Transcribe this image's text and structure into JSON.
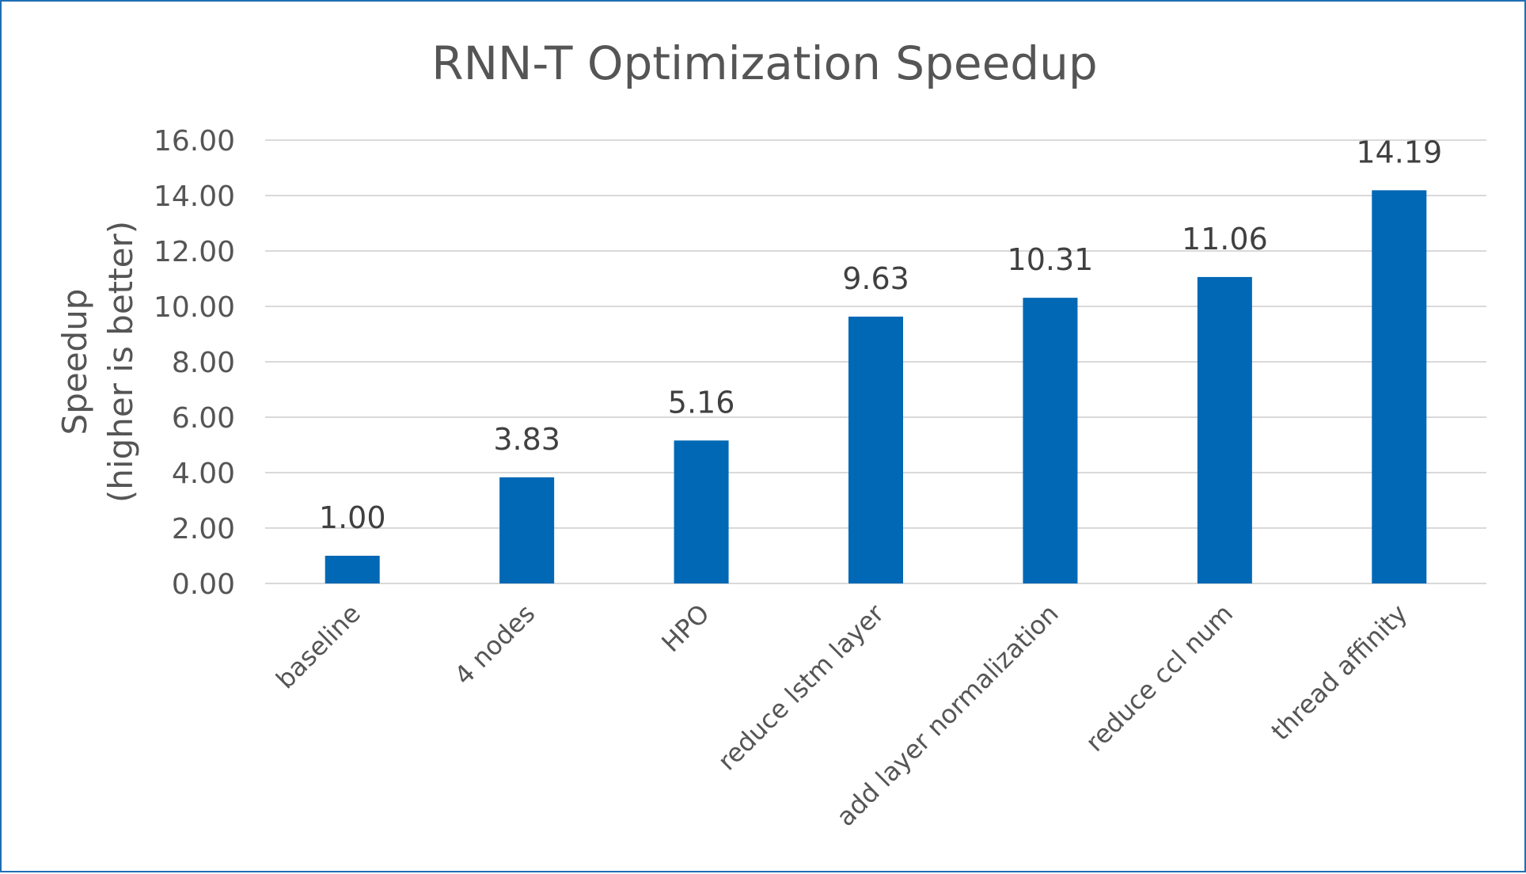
{
  "chart_data": {
    "type": "bar",
    "title": "RNN-T Optimization Speedup",
    "ylabel_lines": [
      "Speedup",
      "(higher is better)"
    ],
    "xlabel": "",
    "categories": [
      "baseline",
      "4 nodes",
      "HPO",
      "reduce lstm layer",
      "add layer normalization",
      "reduce ccl num",
      "thread affinity"
    ],
    "values": [
      1.0,
      3.83,
      5.16,
      9.63,
      10.31,
      11.06,
      14.19
    ],
    "data_labels": [
      "1.00",
      "3.83",
      "5.16",
      "9.63",
      "10.31",
      "11.06",
      "14.19"
    ],
    "ylim": [
      0,
      16
    ],
    "yticks": [
      0,
      2,
      4,
      6,
      8,
      10,
      12,
      14,
      16
    ],
    "ytick_labels": [
      "0.00",
      "2.00",
      "4.00",
      "6.00",
      "8.00",
      "10.00",
      "12.00",
      "14.00",
      "16.00"
    ],
    "grid": true,
    "legend": "none",
    "bar_color": "#0068b5"
  }
}
